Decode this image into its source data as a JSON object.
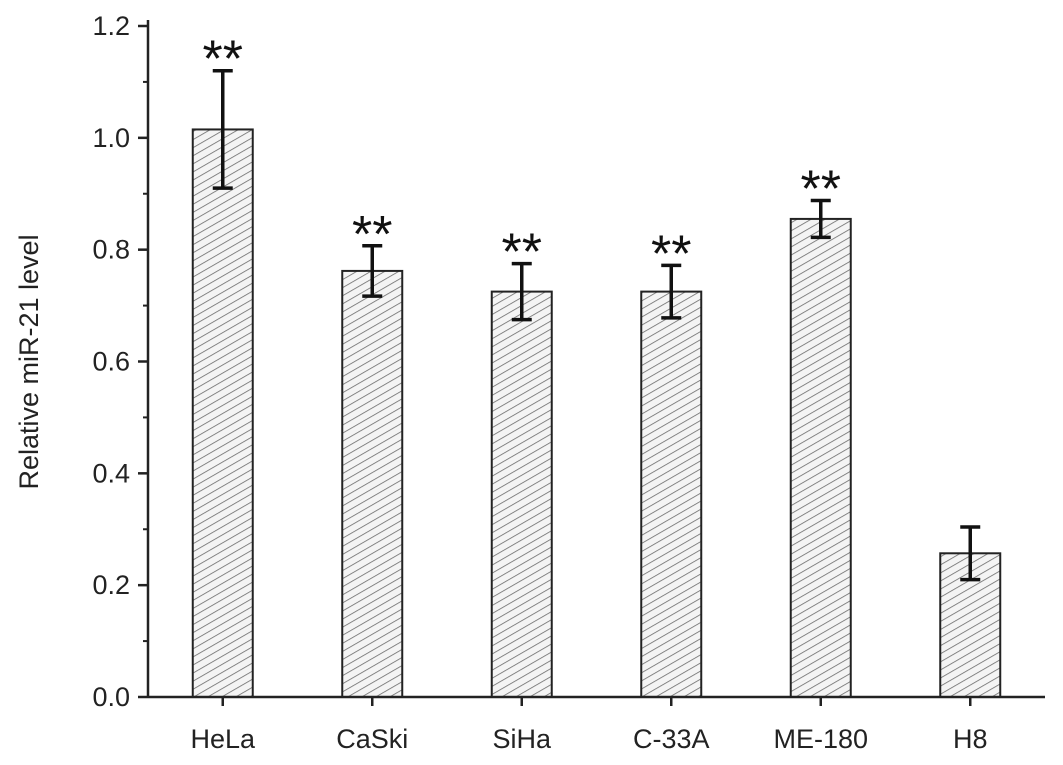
{
  "chart_data": {
    "type": "bar",
    "title": "",
    "xlabel": "",
    "ylabel": "Relative miR-21 level",
    "ylim": [
      0,
      1.2
    ],
    "yticks": [
      "0.0",
      "0.2",
      "0.4",
      "0.6",
      "0.8",
      "1.0",
      "1.2"
    ],
    "categories": [
      "HeLa",
      "CaSki",
      "SiHa",
      "C-33A",
      "ME-180",
      "H8"
    ],
    "values": [
      1.015,
      0.762,
      0.725,
      0.725,
      0.855,
      0.257
    ],
    "errors": [
      0.105,
      0.045,
      0.05,
      0.047,
      0.033,
      0.047
    ],
    "significance": [
      "**",
      "**",
      "**",
      "**",
      "**",
      ""
    ],
    "grid": false,
    "bar_fill": "hatched",
    "colors": {
      "bar_edge": "#222222",
      "hatch": "#555555",
      "axis": "#222222"
    }
  }
}
